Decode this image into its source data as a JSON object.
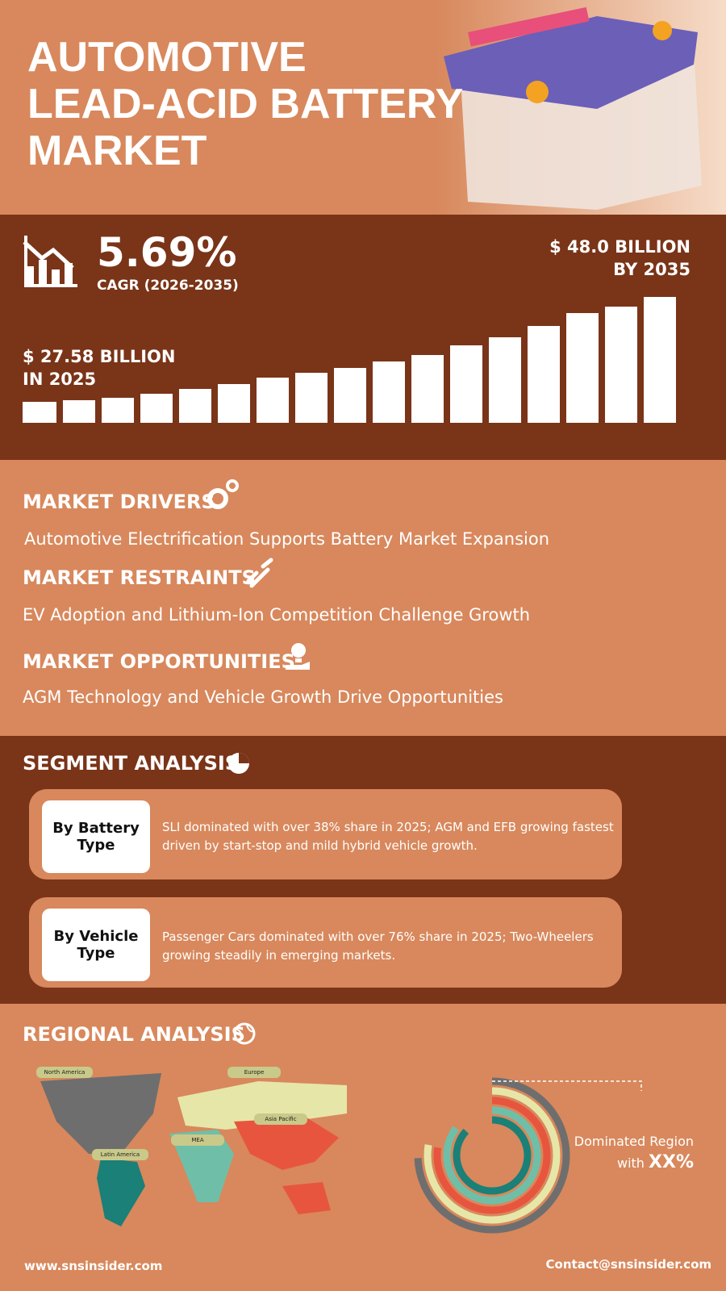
{
  "header": {
    "title_lines": [
      "AUTOMOTIVE",
      "LEAD-ACID BATTERY",
      "MARKET"
    ]
  },
  "stats": {
    "cagr": "5.69%",
    "cagr_label": "CAGR (2026-2035)",
    "end_value": "$ 48.0 BILLION",
    "end_year": "BY 2035",
    "start_value": "$ 27.58 BILLION",
    "start_year": "IN 2025"
  },
  "market": {
    "drivers": {
      "title": "MARKET DRIVERS",
      "text": "Automotive Electrification Supports Battery Market Expansion"
    },
    "restraints": {
      "title": "MARKET RESTRAINTS",
      "text": "EV Adoption and Lithium-Ion Competition Challenge Growth"
    },
    "opportunities": {
      "title": "MARKET OPPORTUNITIES",
      "text": "AGM Technology and Vehicle Growth Drive Opportunities"
    }
  },
  "segments": {
    "title": "SEGMENT ANALYSIS",
    "items": [
      {
        "label_lines": [
          "By Battery",
          "Type"
        ],
        "text": "SLI dominated with over 38% share in 2025; AGM and EFB growing fastest driven by start-stop and mild hybrid vehicle growth."
      },
      {
        "label_lines": [
          "By Vehicle",
          "Type"
        ],
        "text": "Passenger Cars dominated with over 76% share in 2025; Two-Wheelers growing steadily in emerging markets."
      }
    ]
  },
  "regional": {
    "title": "REGIONAL ANALYSIS",
    "regions": [
      "North America",
      "Europe",
      "Asia Pacific",
      "MEA",
      "Latin America"
    ],
    "dominated_label": "Dominated Region",
    "with": "with",
    "share": "XX%"
  },
  "footer": {
    "website": "www.snsinsider.com",
    "contact": "Contact@snsinsider.com"
  }
}
